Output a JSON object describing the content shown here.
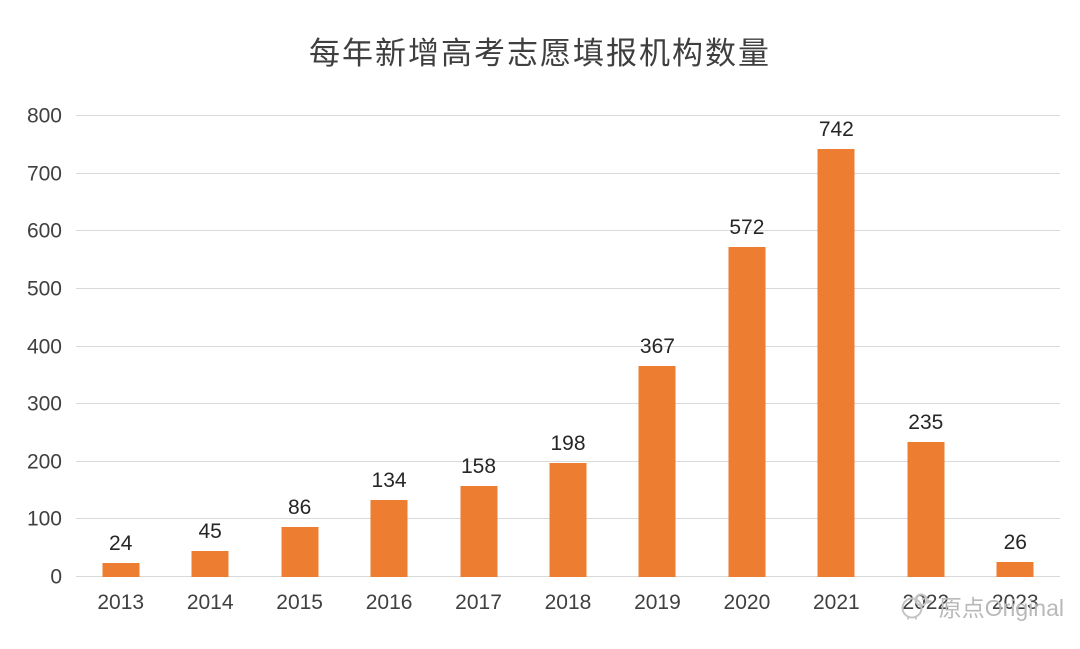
{
  "chart_data": {
    "type": "bar",
    "title": "每年新增高考志愿填报机构数量",
    "categories": [
      "2013",
      "2014",
      "2015",
      "2016",
      "2017",
      "2018",
      "2019",
      "2020",
      "2021",
      "2022",
      "2023"
    ],
    "values": [
      24,
      45,
      86,
      134,
      158,
      198,
      367,
      572,
      742,
      235,
      26
    ],
    "xlabel": "",
    "ylabel": "",
    "ylim": [
      0,
      800
    ],
    "ytick_step": 100,
    "grid": true,
    "legend_position": "none",
    "bar_color": "#ED7D31",
    "gridline_color": "#d9d9d9",
    "title_color": "#3f3f3f",
    "axis_label_color": "#404040",
    "value_label_color": "#262626"
  },
  "watermark": {
    "text": "原点Original",
    "icon": "chick-icon",
    "color": "#b9b9b9"
  }
}
